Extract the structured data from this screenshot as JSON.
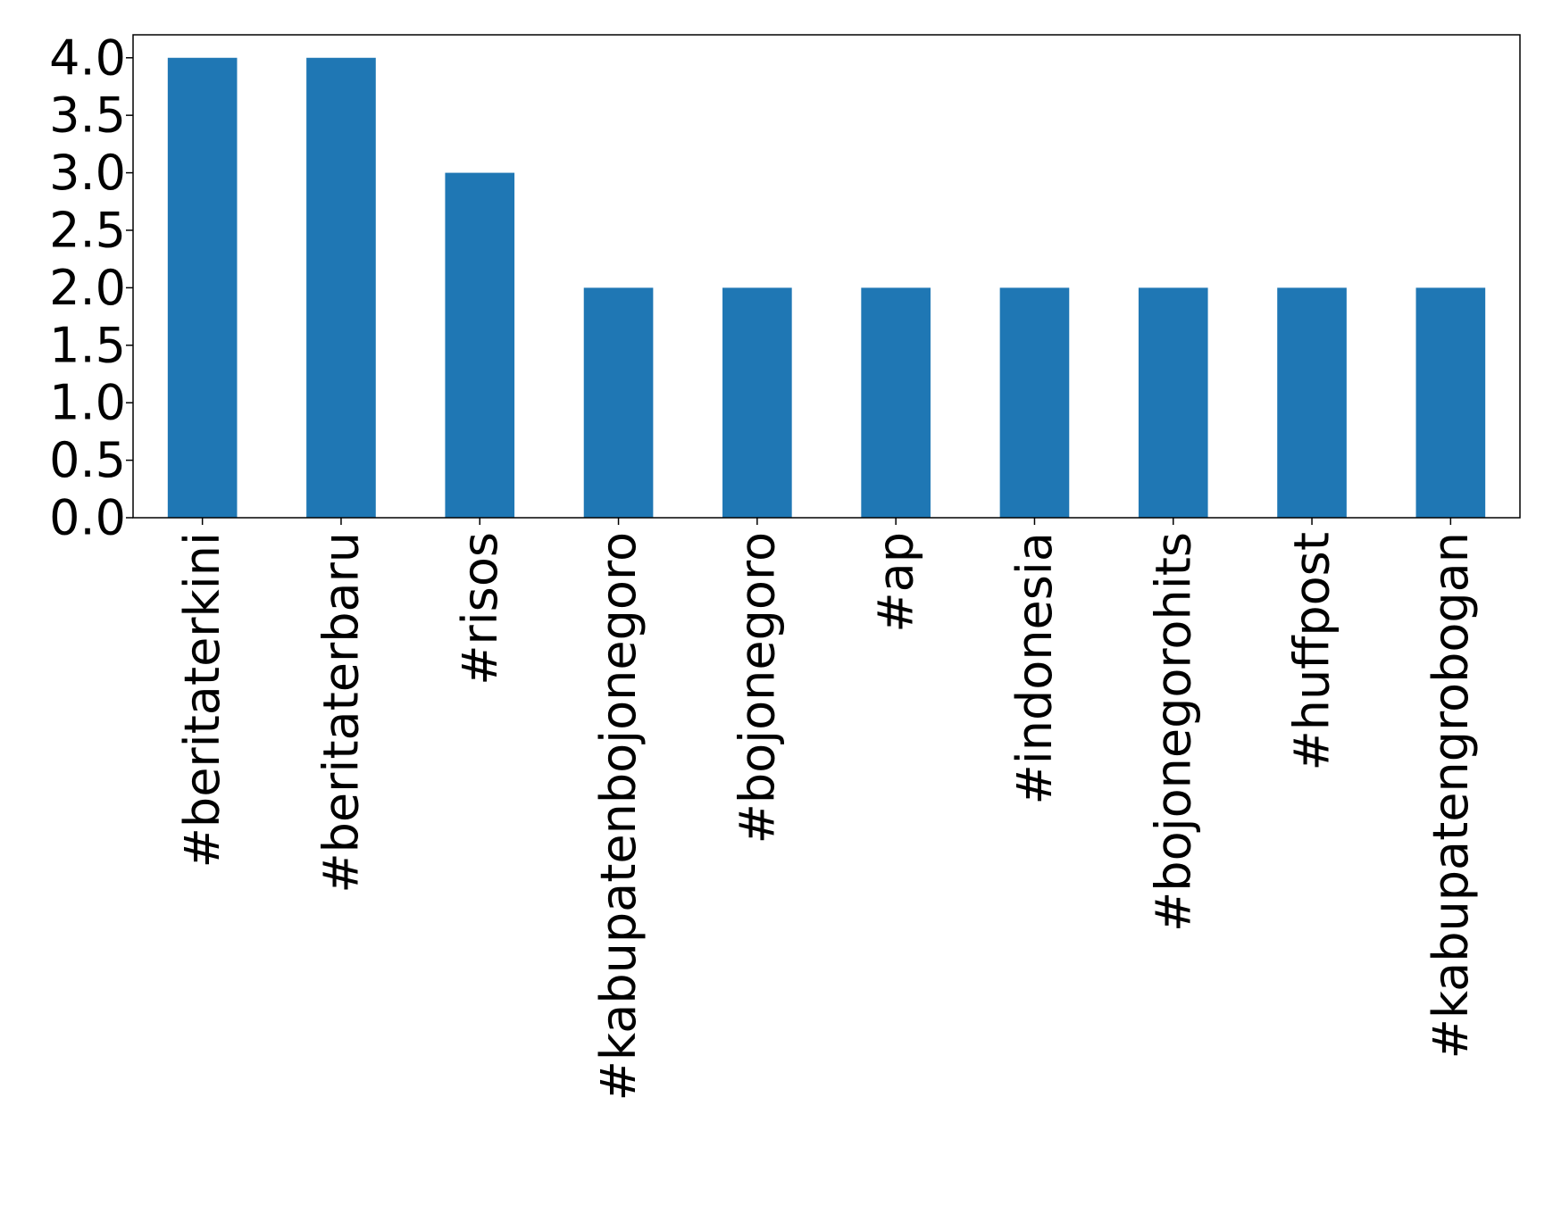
{
  "chart_data": {
    "type": "bar",
    "title": "",
    "xlabel": "",
    "ylabel": "",
    "categories": [
      "#beritaterkini",
      "#beritaterbaru",
      "#risos",
      "#kabupatenbojonegoro",
      "#bojonegoro",
      "#ap",
      "#indonesia",
      "#bojonegorohits",
      "#huffpost",
      "#kabupatengrobogan"
    ],
    "values": [
      4,
      4,
      3,
      2,
      2,
      2,
      2,
      2,
      2,
      2
    ],
    "ylim": [
      0,
      4.2
    ],
    "yticks": [
      0.0,
      0.5,
      1.0,
      1.5,
      2.0,
      2.5,
      3.0,
      3.5,
      4.0
    ],
    "ytick_labels": [
      "0.0",
      "0.5",
      "1.0",
      "1.5",
      "2.0",
      "2.5",
      "3.0",
      "3.5",
      "4.0"
    ],
    "grid": false,
    "legend": "none",
    "colors": {
      "bar": "#1f77b4",
      "axis": "#000000"
    }
  }
}
